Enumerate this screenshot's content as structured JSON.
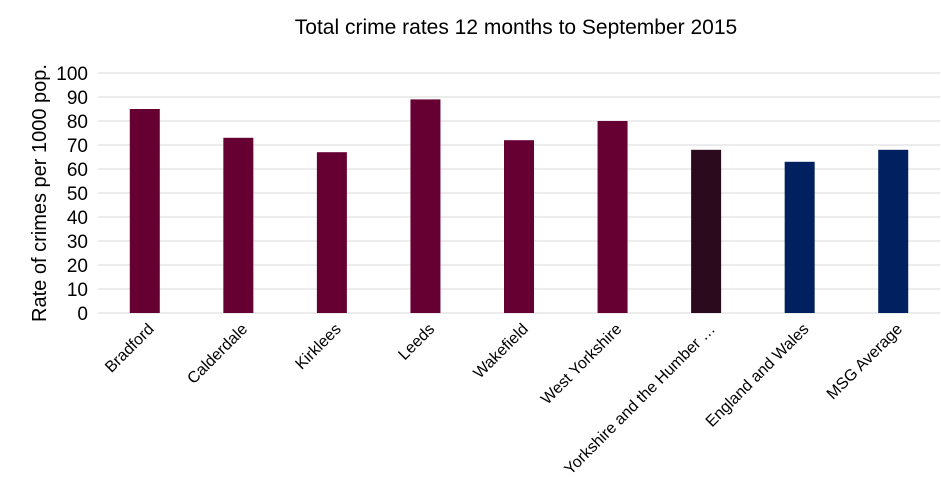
{
  "chart_data": {
    "type": "bar",
    "title": "Total crime rates 12 months to September 2015",
    "xlabel": "",
    "ylabel": "Rate of crimes per 1000 pop.",
    "ylim": [
      0,
      100
    ],
    "yticks": [
      0,
      10,
      20,
      30,
      40,
      50,
      60,
      70,
      80,
      90,
      100
    ],
    "grid": true,
    "legend": "none",
    "categories": [
      "Bradford",
      "Calderdale",
      "Kirklees",
      "Leeds",
      "Wakefield",
      "West Yorkshire",
      "Yorkshire and the Humber …",
      "England and Wales",
      "MSG Average"
    ],
    "values": [
      85,
      73,
      67,
      89,
      72,
      80,
      68,
      63,
      68
    ],
    "bar_colors": [
      "#660033",
      "#660033",
      "#660033",
      "#660033",
      "#660033",
      "#660033",
      "#2b0a1e",
      "#002060",
      "#002060"
    ]
  }
}
